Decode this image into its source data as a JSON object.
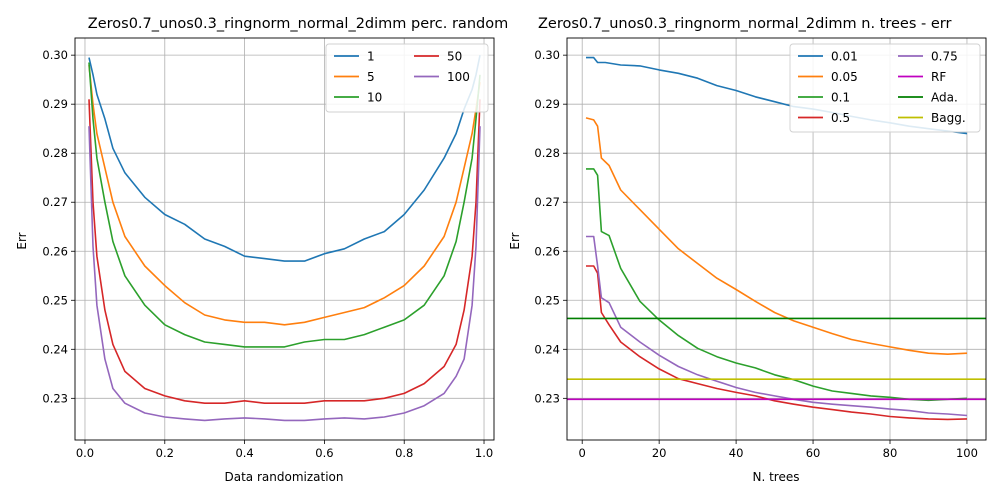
{
  "chart_data": [
    {
      "type": "line",
      "title": "Zeros0.7_unos0.3_ringnorm_normal_2dimm perc. random",
      "xlabel": "Data randomization",
      "ylabel": "Err",
      "xlim": [
        -0.025,
        1.025
      ],
      "ylim": [
        0.2215,
        0.3035
      ],
      "xticks": [
        0.0,
        0.2,
        0.4,
        0.6,
        0.8,
        1.0
      ],
      "xtick_labels": [
        "0.0",
        "0.2",
        "0.4",
        "0.6",
        "0.8",
        "1.0"
      ],
      "yticks": [
        0.23,
        0.24,
        0.25,
        0.26,
        0.27,
        0.28,
        0.29,
        0.3
      ],
      "ytick_labels": [
        "0.23",
        "0.24",
        "0.25",
        "0.26",
        "0.27",
        "0.28",
        "0.29",
        "0.30"
      ],
      "grid": true,
      "legend_placement": "top-right",
      "legend_columns": 2,
      "series": [
        {
          "name": "1",
          "color": "#1f77b4",
          "x": [
            0.01,
            0.02,
            0.03,
            0.05,
            0.07,
            0.1,
            0.15,
            0.2,
            0.25,
            0.3,
            0.35,
            0.4,
            0.45,
            0.5,
            0.55,
            0.6,
            0.65,
            0.7,
            0.75,
            0.8,
            0.85,
            0.9,
            0.93,
            0.95,
            0.97,
            0.98,
            0.99
          ],
          "y": [
            0.2995,
            0.296,
            0.292,
            0.287,
            0.281,
            0.276,
            0.271,
            0.2675,
            0.2655,
            0.2625,
            0.261,
            0.259,
            0.2585,
            0.258,
            0.258,
            0.2595,
            0.2605,
            0.2625,
            0.264,
            0.2675,
            0.2725,
            0.279,
            0.284,
            0.289,
            0.293,
            0.296,
            0.3
          ]
        },
        {
          "name": "5",
          "color": "#ff7f0e",
          "x": [
            0.01,
            0.02,
            0.03,
            0.05,
            0.07,
            0.1,
            0.15,
            0.2,
            0.25,
            0.3,
            0.35,
            0.4,
            0.45,
            0.5,
            0.55,
            0.6,
            0.65,
            0.7,
            0.75,
            0.8,
            0.85,
            0.9,
            0.93,
            0.95,
            0.97,
            0.98,
            0.99
          ],
          "y": [
            0.298,
            0.29,
            0.284,
            0.277,
            0.27,
            0.263,
            0.257,
            0.253,
            0.2495,
            0.247,
            0.246,
            0.2455,
            0.2455,
            0.245,
            0.2455,
            0.2465,
            0.2475,
            0.2485,
            0.2505,
            0.253,
            0.257,
            0.263,
            0.27,
            0.277,
            0.284,
            0.289,
            0.2945
          ]
        },
        {
          "name": "10",
          "color": "#2ca02c",
          "x": [
            0.01,
            0.02,
            0.03,
            0.05,
            0.07,
            0.1,
            0.15,
            0.2,
            0.25,
            0.3,
            0.35,
            0.4,
            0.45,
            0.5,
            0.55,
            0.6,
            0.65,
            0.7,
            0.75,
            0.8,
            0.85,
            0.9,
            0.93,
            0.95,
            0.97,
            0.98,
            0.99
          ],
          "y": [
            0.2985,
            0.287,
            0.279,
            0.27,
            0.262,
            0.255,
            0.249,
            0.245,
            0.243,
            0.2415,
            0.241,
            0.2405,
            0.2405,
            0.2405,
            0.2415,
            0.242,
            0.242,
            0.243,
            0.2445,
            0.246,
            0.249,
            0.255,
            0.262,
            0.27,
            0.279,
            0.287,
            0.296
          ]
        },
        {
          "name": "50",
          "color": "#d62728",
          "x": [
            0.01,
            0.02,
            0.03,
            0.05,
            0.07,
            0.1,
            0.15,
            0.2,
            0.25,
            0.3,
            0.35,
            0.4,
            0.45,
            0.5,
            0.55,
            0.6,
            0.65,
            0.7,
            0.75,
            0.8,
            0.85,
            0.9,
            0.93,
            0.95,
            0.97,
            0.98,
            0.99
          ],
          "y": [
            0.291,
            0.27,
            0.259,
            0.248,
            0.241,
            0.2355,
            0.232,
            0.2305,
            0.2295,
            0.229,
            0.229,
            0.2295,
            0.229,
            0.229,
            0.229,
            0.2295,
            0.2295,
            0.2295,
            0.23,
            0.231,
            0.233,
            0.2365,
            0.241,
            0.248,
            0.259,
            0.27,
            0.291
          ]
        },
        {
          "name": "100",
          "color": "#9467bd",
          "x": [
            0.01,
            0.02,
            0.03,
            0.05,
            0.07,
            0.1,
            0.15,
            0.2,
            0.25,
            0.3,
            0.35,
            0.4,
            0.45,
            0.5,
            0.55,
            0.6,
            0.65,
            0.7,
            0.75,
            0.8,
            0.85,
            0.9,
            0.93,
            0.95,
            0.97,
            0.98,
            0.99
          ],
          "y": [
            0.2855,
            0.261,
            0.249,
            0.238,
            0.232,
            0.229,
            0.227,
            0.2262,
            0.2258,
            0.2255,
            0.2258,
            0.226,
            0.2258,
            0.2255,
            0.2255,
            0.2258,
            0.226,
            0.2258,
            0.2262,
            0.227,
            0.2285,
            0.231,
            0.2345,
            0.238,
            0.249,
            0.261,
            0.2855
          ]
        }
      ]
    },
    {
      "type": "line",
      "title": "Zeros0.7_unos0.3_ringnorm_normal_2dimm n. trees - err",
      "xlabel": "N. trees",
      "ylabel": "Err",
      "xlim": [
        -3.95,
        104.95
      ],
      "ylim": [
        0.2215,
        0.3035
      ],
      "xticks": [
        0,
        20,
        40,
        60,
        80,
        100
      ],
      "xtick_labels": [
        "0",
        "20",
        "40",
        "60",
        "80",
        "100"
      ],
      "yticks": [
        0.23,
        0.24,
        0.25,
        0.26,
        0.27,
        0.28,
        0.29,
        0.3
      ],
      "ytick_labels": [
        "0.23",
        "0.24",
        "0.25",
        "0.26",
        "0.27",
        "0.28",
        "0.29",
        "0.30"
      ],
      "grid": true,
      "legend_placement": "top-right",
      "legend_columns": 2,
      "series": [
        {
          "name": "0.01",
          "color": "#1f77b4",
          "x": [
            1,
            3,
            4,
            6,
            10,
            15,
            20,
            25,
            30,
            35,
            40,
            45,
            50,
            55,
            60,
            65,
            70,
            75,
            80,
            85,
            90,
            95,
            100
          ],
          "y": [
            0.2995,
            0.2995,
            0.2985,
            0.2985,
            0.298,
            0.2978,
            0.297,
            0.2963,
            0.2953,
            0.2938,
            0.2928,
            0.2915,
            0.2905,
            0.2895,
            0.289,
            0.2883,
            0.2875,
            0.2868,
            0.2862,
            0.2855,
            0.285,
            0.2845,
            0.284
          ]
        },
        {
          "name": "0.05",
          "color": "#ff7f0e",
          "x": [
            1,
            3,
            4,
            5,
            7,
            10,
            15,
            20,
            25,
            30,
            35,
            40,
            45,
            50,
            55,
            60,
            65,
            70,
            75,
            80,
            85,
            90,
            95,
            100
          ],
          "y": [
            0.2872,
            0.2868,
            0.2855,
            0.279,
            0.2775,
            0.2725,
            0.2685,
            0.2645,
            0.2605,
            0.2575,
            0.2545,
            0.2522,
            0.2498,
            0.2475,
            0.2458,
            0.2445,
            0.2432,
            0.242,
            0.2412,
            0.2405,
            0.2398,
            0.2392,
            0.239,
            0.2392
          ]
        },
        {
          "name": "0.1",
          "color": "#2ca02c",
          "x": [
            1,
            3,
            4,
            5,
            7,
            10,
            15,
            20,
            25,
            30,
            35,
            40,
            45,
            50,
            55,
            60,
            65,
            70,
            75,
            80,
            85,
            90,
            95,
            100
          ],
          "y": [
            0.2768,
            0.2768,
            0.2755,
            0.264,
            0.2632,
            0.2565,
            0.2498,
            0.246,
            0.2428,
            0.2402,
            0.2385,
            0.2372,
            0.2362,
            0.2348,
            0.2338,
            0.2325,
            0.2315,
            0.231,
            0.2305,
            0.2302,
            0.2298,
            0.2296,
            0.2298,
            0.23
          ]
        },
        {
          "name": "0.5",
          "color": "#d62728",
          "x": [
            1,
            3,
            4,
            5,
            7,
            10,
            15,
            20,
            25,
            30,
            35,
            40,
            45,
            50,
            55,
            60,
            65,
            70,
            75,
            80,
            85,
            90,
            95,
            100
          ],
          "y": [
            0.257,
            0.257,
            0.2555,
            0.2475,
            0.245,
            0.2415,
            0.2385,
            0.236,
            0.234,
            0.233,
            0.232,
            0.2312,
            0.2305,
            0.2295,
            0.2288,
            0.2282,
            0.2277,
            0.2272,
            0.2268,
            0.2263,
            0.226,
            0.2258,
            0.2257,
            0.2258
          ]
        },
        {
          "name": "0.75",
          "color": "#9467bd",
          "x": [
            1,
            3,
            4,
            5,
            7,
            10,
            15,
            20,
            25,
            30,
            35,
            40,
            45,
            50,
            55,
            60,
            65,
            70,
            75,
            80,
            85,
            90,
            95,
            100
          ],
          "y": [
            0.263,
            0.263,
            0.257,
            0.2505,
            0.2495,
            0.2445,
            0.2415,
            0.2388,
            0.2365,
            0.2348,
            0.2335,
            0.2322,
            0.2312,
            0.2305,
            0.2298,
            0.2292,
            0.2288,
            0.2285,
            0.2282,
            0.2278,
            0.2275,
            0.227,
            0.2268,
            0.2265
          ]
        },
        {
          "name": "RF",
          "color": "#c000c0",
          "type": "hline",
          "y": 0.2298
        },
        {
          "name": "Ada.",
          "color": "#007f00",
          "type": "hline",
          "y": 0.2463
        },
        {
          "name": "Bagg.",
          "color": "#bfbf00",
          "type": "hline",
          "y": 0.2339
        }
      ]
    }
  ]
}
